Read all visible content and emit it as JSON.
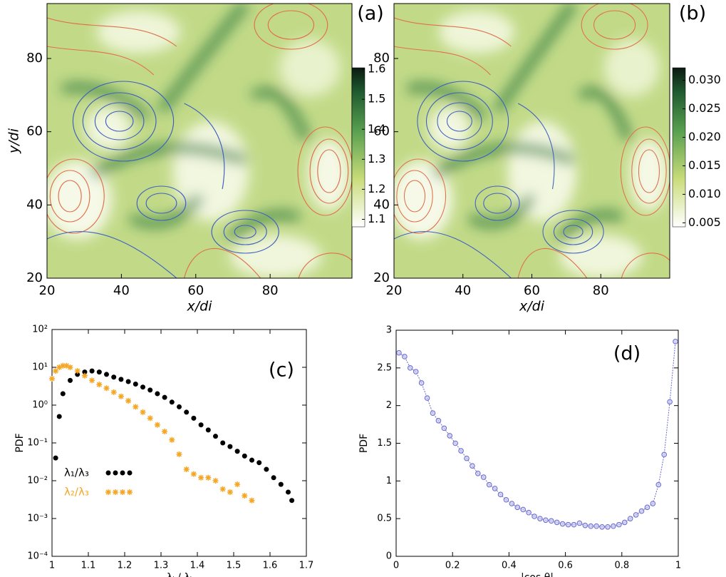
{
  "chart_data": [
    {
      "type": "heatmap",
      "panel_label": "(a)",
      "xlabel": "x/di",
      "ylabel": "y/di",
      "xlim": [
        20,
        102
      ],
      "xticks": [
        20,
        40,
        60,
        80
      ],
      "ylim": [
        20,
        95
      ],
      "yticks": [
        20,
        40,
        60,
        80
      ],
      "colorbar": {
        "clim": [
          1.075,
          1.605
        ],
        "ticks": [
          1.1,
          1.2,
          1.3,
          1.4,
          1.5,
          1.6
        ]
      }
    },
    {
      "type": "heatmap",
      "panel_label": "(b)",
      "xlabel": "x/di",
      "xlim": [
        20,
        100
      ],
      "xticks": [
        20,
        40,
        60,
        80
      ],
      "ylim": [
        20,
        95
      ],
      "yticks": [
        20,
        40,
        60,
        80
      ],
      "colorbar": {
        "clim": [
          0.0043,
          0.0322
        ],
        "ticks": [
          0.005,
          {
            "value": 0.01,
            "label": "0.010"
          },
          0.015,
          {
            "value": 0.02,
            "label": "0.020"
          },
          0.025,
          {
            "value": 0.03,
            "label": "0.030"
          }
        ]
      }
    },
    {
      "type": "scatter",
      "panel_label": "(c)",
      "xlabel": "λᵢ / λⱼ",
      "ylabel": "PDF",
      "log_y": true,
      "legend": "lower left",
      "xlim": [
        1,
        1.7
      ],
      "xticks": [
        1,
        1.1,
        1.2,
        1.3,
        1.4,
        1.5,
        1.6,
        1.7
      ],
      "ylim": [
        0.0001,
        100
      ],
      "yticks": [
        {
          "value": 100,
          "label": "10²"
        },
        {
          "value": 10,
          "label": "10¹"
        },
        {
          "value": 1,
          "label": "10⁰"
        },
        {
          "value": 0.1,
          "label": "10⁻¹"
        },
        {
          "value": 0.01,
          "label": "10⁻²"
        },
        {
          "value": 0.001,
          "label": "10⁻³"
        },
        {
          "value": 0.0001,
          "label": "10⁻⁴"
        }
      ],
      "series": [
        {
          "name": "λ₁/λ₃",
          "color": "#000000",
          "marker": "circle",
          "x": [
            1.01,
            1.02,
            1.03,
            1.05,
            1.07,
            1.09,
            1.11,
            1.13,
            1.15,
            1.17,
            1.19,
            1.21,
            1.23,
            1.25,
            1.27,
            1.29,
            1.31,
            1.33,
            1.35,
            1.37,
            1.39,
            1.41,
            1.43,
            1.45,
            1.47,
            1.49,
            1.51,
            1.53,
            1.55,
            1.57,
            1.59,
            1.61,
            1.63,
            1.65,
            1.66
          ],
          "values": [
            0.04,
            0.5,
            2,
            4.5,
            6.5,
            7.5,
            8,
            7.5,
            6.5,
            5.5,
            4.8,
            4.2,
            3.6,
            3,
            2.5,
            2,
            1.6,
            1.2,
            0.9,
            0.65,
            0.45,
            0.3,
            0.22,
            0.15,
            0.1,
            0.08,
            0.06,
            0.045,
            0.035,
            0.03,
            0.02,
            0.012,
            0.008,
            0.005,
            0.003
          ]
        },
        {
          "name": "λ₂/λ₃",
          "color": "#f5a623",
          "marker": "star",
          "x": [
            1,
            1.01,
            1.02,
            1.03,
            1.04,
            1.05,
            1.07,
            1.09,
            1.11,
            1.13,
            1.15,
            1.17,
            1.19,
            1.21,
            1.23,
            1.25,
            1.27,
            1.29,
            1.31,
            1.33,
            1.35,
            1.37,
            1.39,
            1.41,
            1.43,
            1.45,
            1.47,
            1.49,
            1.51,
            1.53,
            1.55
          ],
          "values": [
            5,
            8,
            10,
            11,
            11,
            10,
            8,
            6,
            4.5,
            3.5,
            2.8,
            2.2,
            1.7,
            1.3,
            0.9,
            0.65,
            0.45,
            0.3,
            0.2,
            0.12,
            0.05,
            0.02,
            0.015,
            0.012,
            0.012,
            0.01,
            0.006,
            0.005,
            0.008,
            0.004,
            0.003
          ]
        }
      ]
    },
    {
      "type": "line",
      "panel_label": "(d)",
      "xlabel": "|cos θ|",
      "ylabel": "PDF",
      "color": "#6a6acf",
      "xlim": [
        0,
        1
      ],
      "xticks": [
        0,
        0.2,
        0.4,
        0.6,
        0.8,
        1
      ],
      "ylim": [
        0,
        3
      ],
      "yticks": [
        0,
        0.5,
        1,
        1.5,
        2,
        2.5,
        3
      ],
      "x": [
        0.01,
        0.03,
        0.05,
        0.07,
        0.09,
        0.11,
        0.13,
        0.15,
        0.17,
        0.19,
        0.21,
        0.23,
        0.25,
        0.27,
        0.29,
        0.31,
        0.33,
        0.35,
        0.37,
        0.39,
        0.41,
        0.43,
        0.45,
        0.47,
        0.49,
        0.51,
        0.53,
        0.55,
        0.57,
        0.59,
        0.61,
        0.63,
        0.65,
        0.67,
        0.69,
        0.71,
        0.73,
        0.75,
        0.77,
        0.79,
        0.81,
        0.83,
        0.85,
        0.87,
        0.89,
        0.91,
        0.93,
        0.95,
        0.97,
        0.99
      ],
      "values": [
        2.7,
        2.65,
        2.5,
        2.45,
        2.3,
        2.1,
        1.9,
        1.8,
        1.7,
        1.6,
        1.5,
        1.4,
        1.3,
        1.2,
        1.1,
        1.05,
        0.95,
        0.9,
        0.82,
        0.75,
        0.7,
        0.65,
        0.62,
        0.58,
        0.53,
        0.5,
        0.48,
        0.47,
        0.45,
        0.43,
        0.42,
        0.42,
        0.44,
        0.41,
        0.4,
        0.4,
        0.39,
        0.39,
        0.4,
        0.42,
        0.45,
        0.5,
        0.55,
        0.6,
        0.65,
        0.7,
        0.95,
        1.35,
        2.05,
        2.85
      ]
    }
  ]
}
